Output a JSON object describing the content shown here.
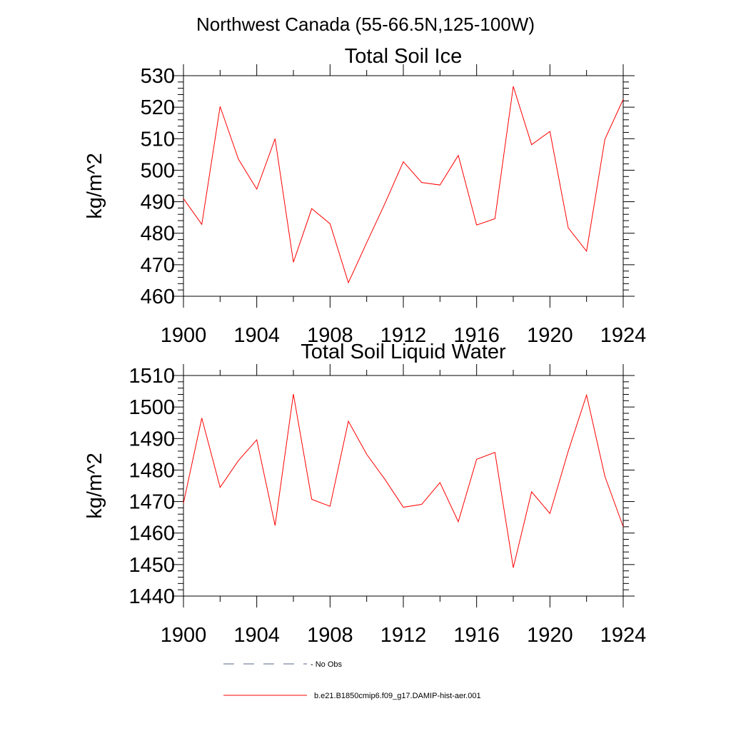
{
  "figure": {
    "title": "Northwest Canada (55-66.5N,125-100W)"
  },
  "colors": {
    "series": "#ff0000",
    "obs": "#5a6488",
    "axis": "#000000"
  },
  "legend": {
    "entries": [
      {
        "label": "- No Obs",
        "style": "dashed",
        "color": "#5a6488"
      },
      {
        "label": "b.e21.B1850cmip6.f09_g17.DAMIP-hist-aer.001",
        "style": "solid",
        "color": "#ff0000"
      }
    ]
  },
  "chart_data": [
    {
      "type": "line",
      "title": "Total Soil Ice",
      "xlabel": "",
      "ylabel": "kg/m^2",
      "xlim": [
        1900,
        1924
      ],
      "ylim": [
        460,
        530
      ],
      "xticks": [
        1900,
        1904,
        1908,
        1912,
        1916,
        1920,
        1924
      ],
      "yticks": [
        460,
        470,
        480,
        490,
        500,
        510,
        520,
        530
      ],
      "grid": false,
      "series": [
        {
          "name": "b.e21.B1850cmip6.f09_g17.DAMIP-hist-aer.001",
          "x": [
            1900,
            1901,
            1902,
            1903,
            1904,
            1905,
            1906,
            1907,
            1908,
            1909,
            1910,
            1911,
            1912,
            1913,
            1914,
            1915,
            1916,
            1917,
            1918,
            1919,
            1920,
            1921,
            1922,
            1923,
            1924
          ],
          "y": [
            491.0,
            482.8,
            520.2,
            503.5,
            494.0,
            510.0,
            470.8,
            487.8,
            483.0,
            464.3,
            477.0,
            489.5,
            502.7,
            496.1,
            495.3,
            504.7,
            482.6,
            484.6,
            526.6,
            508.1,
            512.3,
            481.7,
            474.3,
            509.8,
            522.5
          ]
        }
      ]
    },
    {
      "type": "line",
      "title": "Total Soil Liquid Water",
      "xlabel": "",
      "ylabel": "kg/m^2",
      "xlim": [
        1900,
        1924
      ],
      "ylim": [
        1440,
        1510
      ],
      "xticks": [
        1900,
        1904,
        1908,
        1912,
        1916,
        1920,
        1924
      ],
      "yticks": [
        1440,
        1450,
        1460,
        1470,
        1480,
        1490,
        1500,
        1510
      ],
      "grid": false,
      "series": [
        {
          "name": "b.e21.B1850cmip6.f09_g17.DAMIP-hist-aer.001",
          "x": [
            1900,
            1901,
            1902,
            1903,
            1904,
            1905,
            1906,
            1907,
            1908,
            1909,
            1910,
            1911,
            1912,
            1913,
            1914,
            1915,
            1916,
            1917,
            1918,
            1919,
            1920,
            1921,
            1922,
            1923,
            1924
          ],
          "y": [
            1469.5,
            1496.5,
            1474.5,
            1483.0,
            1489.6,
            1462.4,
            1504.1,
            1470.7,
            1468.5,
            1495.5,
            1485.0,
            1477.0,
            1468.2,
            1469.1,
            1476.0,
            1463.6,
            1483.4,
            1485.6,
            1449.0,
            1473.1,
            1466.2,
            1486.0,
            1503.8,
            1478.0,
            1462.0
          ]
        }
      ]
    }
  ]
}
